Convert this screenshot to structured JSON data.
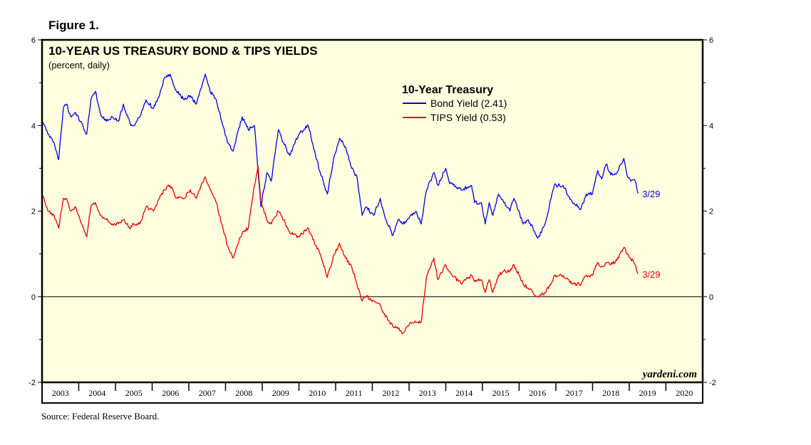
{
  "figure_label": "Figure 1.",
  "source_note": "Source: Federal Reserve Board.",
  "watermark": "yardeni.com",
  "colors": {
    "plot_background": "#ffffe0",
    "bond": "#0000e6",
    "tips": "#e60000",
    "frame": "#000000"
  },
  "chart_data": {
    "type": "line",
    "title": "10-YEAR US TREASURY BOND & TIPS YIELDS",
    "subtitle": "(percent, daily)",
    "legend_title": "10-Year Treasury",
    "legend_placement": "top-center",
    "grid": false,
    "reference_line_y": 0,
    "xlim": [
      "2003-01-01",
      "2021-01-01"
    ],
    "ylim": [
      -2,
      6
    ],
    "y_ticks": [
      -2,
      0,
      2,
      4,
      6
    ],
    "x_tick_labels": [
      "2003",
      "2004",
      "2005",
      "2006",
      "2007",
      "2008",
      "2009",
      "2010",
      "2011",
      "2012",
      "2013",
      "2014",
      "2015",
      "2016",
      "2017",
      "2018",
      "2019",
      "2020"
    ],
    "series": [
      {
        "name": "Bond Yield (2.41)",
        "end_label": "3/29",
        "points": [
          [
            "2003-01-01",
            4.1
          ],
          [
            "2003-03-01",
            3.8
          ],
          [
            "2003-05-01",
            3.6
          ],
          [
            "2003-06-15",
            3.2
          ],
          [
            "2003-08-01",
            4.4
          ],
          [
            "2003-09-01",
            4.5
          ],
          [
            "2003-10-15",
            4.2
          ],
          [
            "2003-12-01",
            4.3
          ],
          [
            "2004-01-15",
            4.1
          ],
          [
            "2004-03-20",
            3.8
          ],
          [
            "2004-05-01",
            4.6
          ],
          [
            "2004-06-15",
            4.8
          ],
          [
            "2004-08-01",
            4.3
          ],
          [
            "2004-10-01",
            4.1
          ],
          [
            "2004-12-01",
            4.2
          ],
          [
            "2005-02-01",
            4.1
          ],
          [
            "2005-03-20",
            4.5
          ],
          [
            "2005-06-01",
            4.0
          ],
          [
            "2005-07-01",
            4.0
          ],
          [
            "2005-09-01",
            4.2
          ],
          [
            "2005-11-01",
            4.6
          ],
          [
            "2006-01-15",
            4.4
          ],
          [
            "2006-03-15",
            4.7
          ],
          [
            "2006-05-01",
            5.1
          ],
          [
            "2006-06-28",
            5.2
          ],
          [
            "2006-09-01",
            4.8
          ],
          [
            "2006-11-15",
            4.6
          ],
          [
            "2007-01-15",
            4.7
          ],
          [
            "2007-03-15",
            4.5
          ],
          [
            "2007-06-12",
            5.2
          ],
          [
            "2007-08-01",
            4.8
          ],
          [
            "2007-10-01",
            4.6
          ],
          [
            "2007-11-25",
            4.1
          ],
          [
            "2008-01-20",
            3.6
          ],
          [
            "2008-03-15",
            3.4
          ],
          [
            "2008-06-15",
            4.2
          ],
          [
            "2008-08-15",
            3.9
          ],
          [
            "2008-10-15",
            4.0
          ],
          [
            "2008-12-18",
            2.1
          ],
          [
            "2009-02-15",
            2.9
          ],
          [
            "2009-04-01",
            2.7
          ],
          [
            "2009-06-10",
            3.9
          ],
          [
            "2009-08-01",
            3.6
          ],
          [
            "2009-10-01",
            3.3
          ],
          [
            "2009-12-31",
            3.8
          ],
          [
            "2010-04-05",
            4.0
          ],
          [
            "2010-06-15",
            3.3
          ],
          [
            "2010-08-01",
            2.9
          ],
          [
            "2010-10-10",
            2.4
          ],
          [
            "2010-12-20",
            3.3
          ],
          [
            "2011-02-10",
            3.7
          ],
          [
            "2011-04-10",
            3.5
          ],
          [
            "2011-06-10",
            3.0
          ],
          [
            "2011-08-01",
            2.8
          ],
          [
            "2011-09-22",
            1.9
          ],
          [
            "2011-11-01",
            2.1
          ],
          [
            "2012-01-15",
            1.9
          ],
          [
            "2012-03-20",
            2.3
          ],
          [
            "2012-05-01",
            1.9
          ],
          [
            "2012-07-24",
            1.43
          ],
          [
            "2012-09-15",
            1.8
          ],
          [
            "2012-11-01",
            1.7
          ],
          [
            "2013-01-15",
            1.9
          ],
          [
            "2013-03-10",
            2.0
          ],
          [
            "2013-05-01",
            1.7
          ],
          [
            "2013-06-25",
            2.5
          ],
          [
            "2013-09-05",
            2.9
          ],
          [
            "2013-10-15",
            2.6
          ],
          [
            "2013-12-31",
            3.0
          ],
          [
            "2014-02-01",
            2.7
          ],
          [
            "2014-06-01",
            2.5
          ],
          [
            "2014-09-15",
            2.6
          ],
          [
            "2014-10-15",
            2.2
          ],
          [
            "2014-12-20",
            2.2
          ],
          [
            "2015-01-30",
            1.7
          ],
          [
            "2015-03-10",
            2.2
          ],
          [
            "2015-04-15",
            1.9
          ],
          [
            "2015-06-10",
            2.4
          ],
          [
            "2015-08-01",
            2.2
          ],
          [
            "2015-10-01",
            2.0
          ],
          [
            "2015-11-10",
            2.3
          ],
          [
            "2016-02-10",
            1.7
          ],
          [
            "2016-04-01",
            1.8
          ],
          [
            "2016-07-06",
            1.37
          ],
          [
            "2016-09-15",
            1.7
          ],
          [
            "2016-11-15",
            2.3
          ],
          [
            "2016-12-16",
            2.6
          ],
          [
            "2017-03-15",
            2.6
          ],
          [
            "2017-06-15",
            2.2
          ],
          [
            "2017-09-08",
            2.05
          ],
          [
            "2017-11-01",
            2.4
          ],
          [
            "2017-12-31",
            2.4
          ],
          [
            "2018-02-21",
            2.95
          ],
          [
            "2018-04-01",
            2.75
          ],
          [
            "2018-05-17",
            3.1
          ],
          [
            "2018-07-01",
            2.85
          ],
          [
            "2018-09-01",
            2.9
          ],
          [
            "2018-11-08",
            3.23
          ],
          [
            "2018-12-10",
            2.85
          ],
          [
            "2019-01-15",
            2.7
          ],
          [
            "2019-03-01",
            2.7
          ],
          [
            "2019-03-29",
            2.41
          ]
        ]
      },
      {
        "name": "TIPS Yield (0.53)",
        "end_label": "3/29",
        "points": [
          [
            "2003-01-01",
            2.4
          ],
          [
            "2003-03-01",
            2.0
          ],
          [
            "2003-05-01",
            1.9
          ],
          [
            "2003-06-15",
            1.6
          ],
          [
            "2003-08-01",
            2.3
          ],
          [
            "2003-09-01",
            2.3
          ],
          [
            "2003-10-15",
            2.0
          ],
          [
            "2003-12-01",
            2.1
          ],
          [
            "2004-01-15",
            1.8
          ],
          [
            "2004-03-20",
            1.4
          ],
          [
            "2004-05-01",
            2.1
          ],
          [
            "2004-06-15",
            2.2
          ],
          [
            "2004-08-01",
            1.9
          ],
          [
            "2004-10-01",
            1.8
          ],
          [
            "2004-12-01",
            1.7
          ],
          [
            "2005-02-01",
            1.7
          ],
          [
            "2005-03-20",
            1.8
          ],
          [
            "2005-06-01",
            1.6
          ],
          [
            "2005-07-01",
            1.7
          ],
          [
            "2005-09-01",
            1.7
          ],
          [
            "2005-11-01",
            2.1
          ],
          [
            "2006-01-15",
            2.0
          ],
          [
            "2006-03-15",
            2.3
          ],
          [
            "2006-05-01",
            2.5
          ],
          [
            "2006-06-28",
            2.6
          ],
          [
            "2006-09-01",
            2.3
          ],
          [
            "2006-11-15",
            2.3
          ],
          [
            "2007-01-15",
            2.5
          ],
          [
            "2007-03-15",
            2.3
          ],
          [
            "2007-06-12",
            2.8
          ],
          [
            "2007-08-01",
            2.5
          ],
          [
            "2007-10-01",
            2.2
          ],
          [
            "2007-11-25",
            1.7
          ],
          [
            "2008-01-20",
            1.2
          ],
          [
            "2008-03-15",
            0.9
          ],
          [
            "2008-06-15",
            1.5
          ],
          [
            "2008-08-15",
            1.6
          ],
          [
            "2008-10-15",
            2.6
          ],
          [
            "2008-11-20",
            3.05
          ],
          [
            "2008-12-18",
            2.2
          ],
          [
            "2009-02-15",
            1.8
          ],
          [
            "2009-04-01",
            1.7
          ],
          [
            "2009-06-10",
            2.0
          ],
          [
            "2009-08-01",
            1.8
          ],
          [
            "2009-10-01",
            1.5
          ],
          [
            "2009-12-31",
            1.4
          ],
          [
            "2010-04-05",
            1.6
          ],
          [
            "2010-06-15",
            1.2
          ],
          [
            "2010-08-01",
            1.0
          ],
          [
            "2010-10-10",
            0.45
          ],
          [
            "2010-12-20",
            1.0
          ],
          [
            "2011-02-10",
            1.25
          ],
          [
            "2011-04-10",
            0.9
          ],
          [
            "2011-06-10",
            0.7
          ],
          [
            "2011-08-01",
            0.3
          ],
          [
            "2011-09-22",
            -0.1
          ],
          [
            "2011-11-01",
            0.0
          ],
          [
            "2012-01-15",
            -0.1
          ],
          [
            "2012-03-20",
            -0.2
          ],
          [
            "2012-05-01",
            -0.4
          ],
          [
            "2012-07-24",
            -0.7
          ],
          [
            "2012-09-15",
            -0.75
          ],
          [
            "2012-11-01",
            -0.85
          ],
          [
            "2013-01-15",
            -0.6
          ],
          [
            "2013-03-10",
            -0.6
          ],
          [
            "2013-05-01",
            -0.6
          ],
          [
            "2013-06-25",
            0.5
          ],
          [
            "2013-09-05",
            0.9
          ],
          [
            "2013-10-15",
            0.4
          ],
          [
            "2013-12-31",
            0.75
          ],
          [
            "2014-02-01",
            0.6
          ],
          [
            "2014-06-01",
            0.3
          ],
          [
            "2014-09-15",
            0.5
          ],
          [
            "2014-10-15",
            0.35
          ],
          [
            "2014-12-20",
            0.4
          ],
          [
            "2015-01-30",
            0.1
          ],
          [
            "2015-03-10",
            0.4
          ],
          [
            "2015-04-15",
            0.1
          ],
          [
            "2015-06-10",
            0.5
          ],
          [
            "2015-08-01",
            0.6
          ],
          [
            "2015-10-01",
            0.6
          ],
          [
            "2015-11-10",
            0.75
          ],
          [
            "2016-02-10",
            0.3
          ],
          [
            "2016-04-01",
            0.2
          ],
          [
            "2016-07-06",
            0.0
          ],
          [
            "2016-09-15",
            0.1
          ],
          [
            "2016-11-15",
            0.3
          ],
          [
            "2016-12-16",
            0.5
          ],
          [
            "2017-03-15",
            0.5
          ],
          [
            "2017-06-15",
            0.3
          ],
          [
            "2017-09-08",
            0.3
          ],
          [
            "2017-11-01",
            0.5
          ],
          [
            "2017-12-31",
            0.5
          ],
          [
            "2018-02-21",
            0.8
          ],
          [
            "2018-04-01",
            0.7
          ],
          [
            "2018-05-17",
            0.8
          ],
          [
            "2018-07-01",
            0.75
          ],
          [
            "2018-09-01",
            0.85
          ],
          [
            "2018-11-08",
            1.15
          ],
          [
            "2018-12-10",
            1.0
          ],
          [
            "2019-01-15",
            0.9
          ],
          [
            "2019-03-01",
            0.75
          ],
          [
            "2019-03-29",
            0.53
          ]
        ]
      }
    ]
  }
}
